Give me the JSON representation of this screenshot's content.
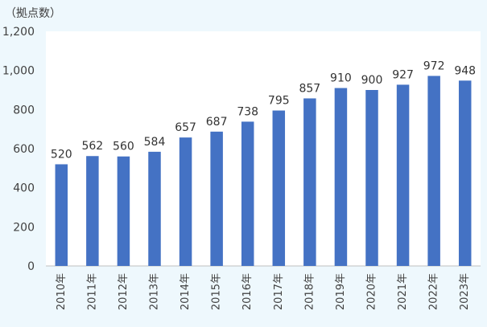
{
  "chart_data": {
    "type": "bar",
    "ylabel": "（拠点数）",
    "categories": [
      "2010年",
      "2011年",
      "2012年",
      "2013年",
      "2014年",
      "2015年",
      "2016年",
      "2017年",
      "2018年",
      "2019年",
      "2020年",
      "2021年",
      "2022年",
      "2023年"
    ],
    "values": [
      520,
      562,
      560,
      584,
      657,
      687,
      738,
      795,
      857,
      910,
      900,
      927,
      972,
      948
    ],
    "ylim": [
      0,
      1200
    ],
    "yticks": [
      0,
      200,
      400,
      600,
      800,
      1000,
      1200
    ],
    "ytick_labels": [
      "0",
      "200",
      "400",
      "600",
      "800",
      "1,000",
      "1,200"
    ],
    "grid": false,
    "data_labels": true,
    "colors": {
      "bar": "#4472c4",
      "plot_background": "#ffffff",
      "page_background": "#eef8fd",
      "axis": "#bfbfbf"
    }
  }
}
